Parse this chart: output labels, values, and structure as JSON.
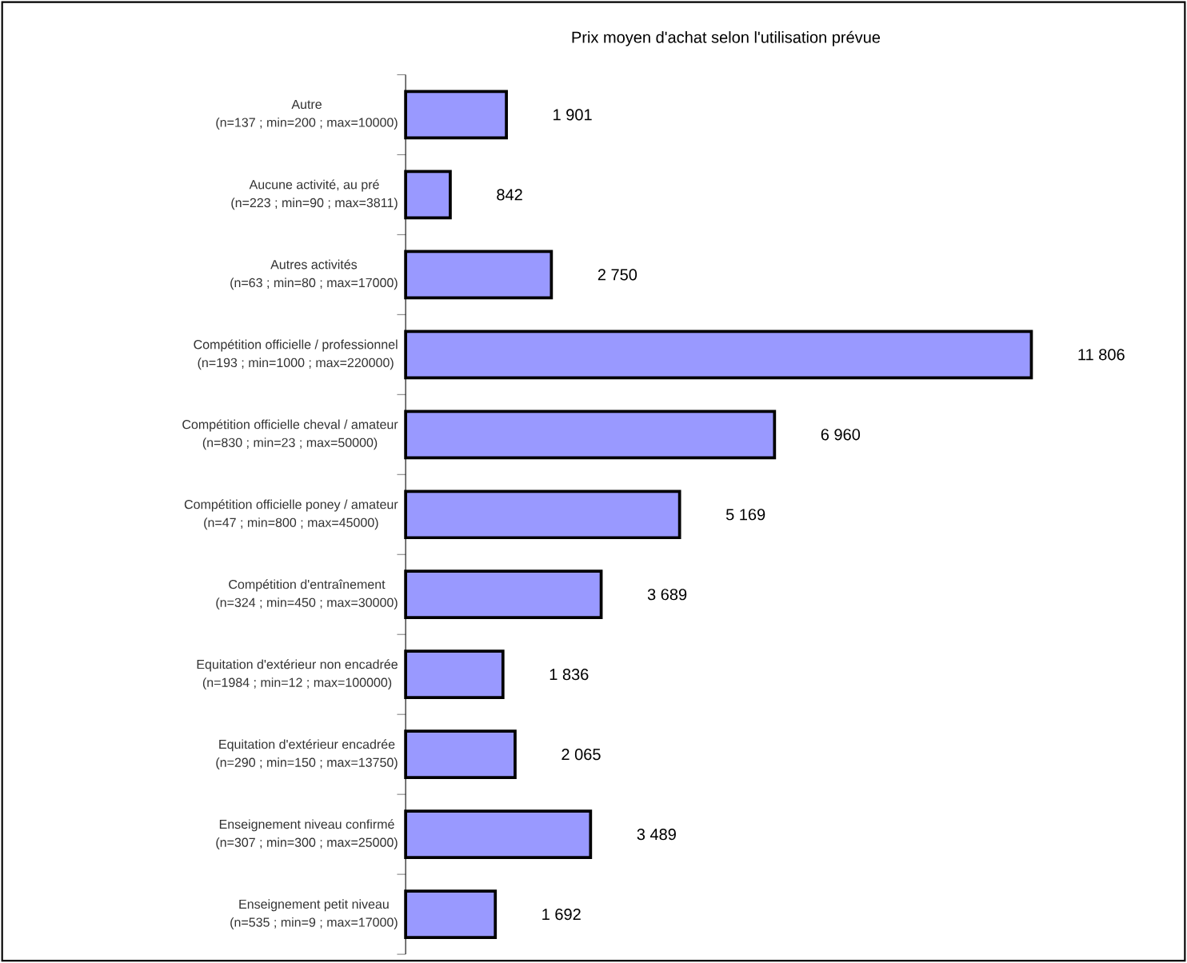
{
  "chart_data": {
    "type": "bar",
    "orientation": "horizontal",
    "title": "Prix moyen d'achat selon l'utilisation prévue",
    "categories": [
      "Autre\n(n=137 ; min=200 ; max=10000)",
      "Aucune activité, au pré\n(n=223 ; min=90 ; max=3811)",
      "Autres activités\n(n=63 ; min=80 ; max=17000)",
      "Compétition officielle / professionnel\n(n=193 ; min=1000 ; max=220000)",
      "Compétition officielle cheval / amateur\n(n=830 ; min=23 ; max=50000)",
      "Compétition officielle poney / amateur\n(n=47 ; min=800 ; max=45000)",
      "Compétition d'entraînement\n(n=324 ; min=450 ; max=30000)",
      "Equitation d'extérieur non encadrée\n(n=1984 ; min=12 ; max=100000)",
      "Equitation d'extérieur encadrée\n(n=290 ; min=150 ; max=13750)",
      "Enseignement niveau confirmé\n(n=307 ; min=300 ; max=25000)",
      "Enseignement petit niveau\n(n=535 ; min=9 ; max=17000)"
    ],
    "values": [
      1901,
      842,
      2750,
      11806,
      6960,
      5169,
      3689,
      1836,
      2065,
      3489,
      1692
    ],
    "value_labels": [
      "1 901",
      "842",
      "2 750",
      "11 806",
      "6 960",
      "5 169",
      "3 689",
      "1 836",
      "2 065",
      "3 489",
      "1 692"
    ],
    "color": "#9999ff"
  }
}
